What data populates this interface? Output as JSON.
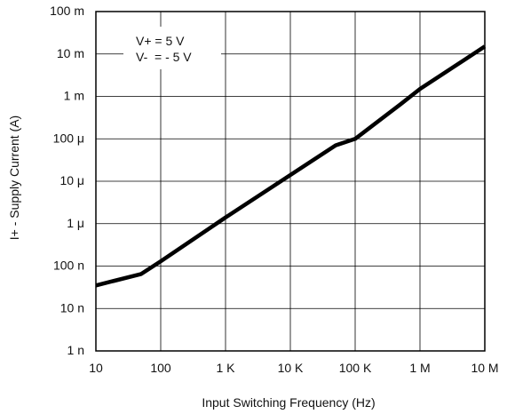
{
  "chart_data": {
    "type": "line",
    "xlabel": "Input Switching Frequency (Hz)",
    "ylabel": "I+ -  Supply Current (A)",
    "xscale": "log",
    "yscale": "log",
    "xlim": [
      10,
      10000000
    ],
    "ylim": [
      1e-09,
      0.1
    ],
    "grid": true,
    "x_ticks": [
      {
        "value": 10,
        "label": "10"
      },
      {
        "value": 100,
        "label": "100"
      },
      {
        "value": 1000,
        "label": "1 K"
      },
      {
        "value": 10000,
        "label": "10 K"
      },
      {
        "value": 100000,
        "label": "100 K"
      },
      {
        "value": 1000000,
        "label": "1 M"
      },
      {
        "value": 10000000,
        "label": "10 M"
      }
    ],
    "y_ticks": [
      {
        "value": 1e-09,
        "label": "1 n"
      },
      {
        "value": 1e-08,
        "label": "10 n"
      },
      {
        "value": 1e-07,
        "label": "100 n"
      },
      {
        "value": 1e-06,
        "label": "1 μ"
      },
      {
        "value": 1e-05,
        "label": "10 μ"
      },
      {
        "value": 0.0001,
        "label": "100 μ"
      },
      {
        "value": 0.001,
        "label": "1 m"
      },
      {
        "value": 0.01,
        "label": "10 m"
      },
      {
        "value": 0.1,
        "label": "100 m"
      }
    ],
    "annotations": [
      "V+ = 5 V",
      "V-  = - 5 V"
    ],
    "series": [
      {
        "x": [
          10,
          50,
          100,
          1000,
          10000,
          50000,
          100000,
          500000,
          1000000,
          5000000,
          10000000
        ],
        "y": [
          3.5e-08,
          6.5e-08,
          1.3e-07,
          1.4e-06,
          1.4e-05,
          7e-05,
          0.0001,
          0.00065,
          0.0015,
          0.0075,
          0.015
        ]
      }
    ]
  },
  "style": {
    "line_color": "#000000",
    "grid_color": "#000000"
  }
}
